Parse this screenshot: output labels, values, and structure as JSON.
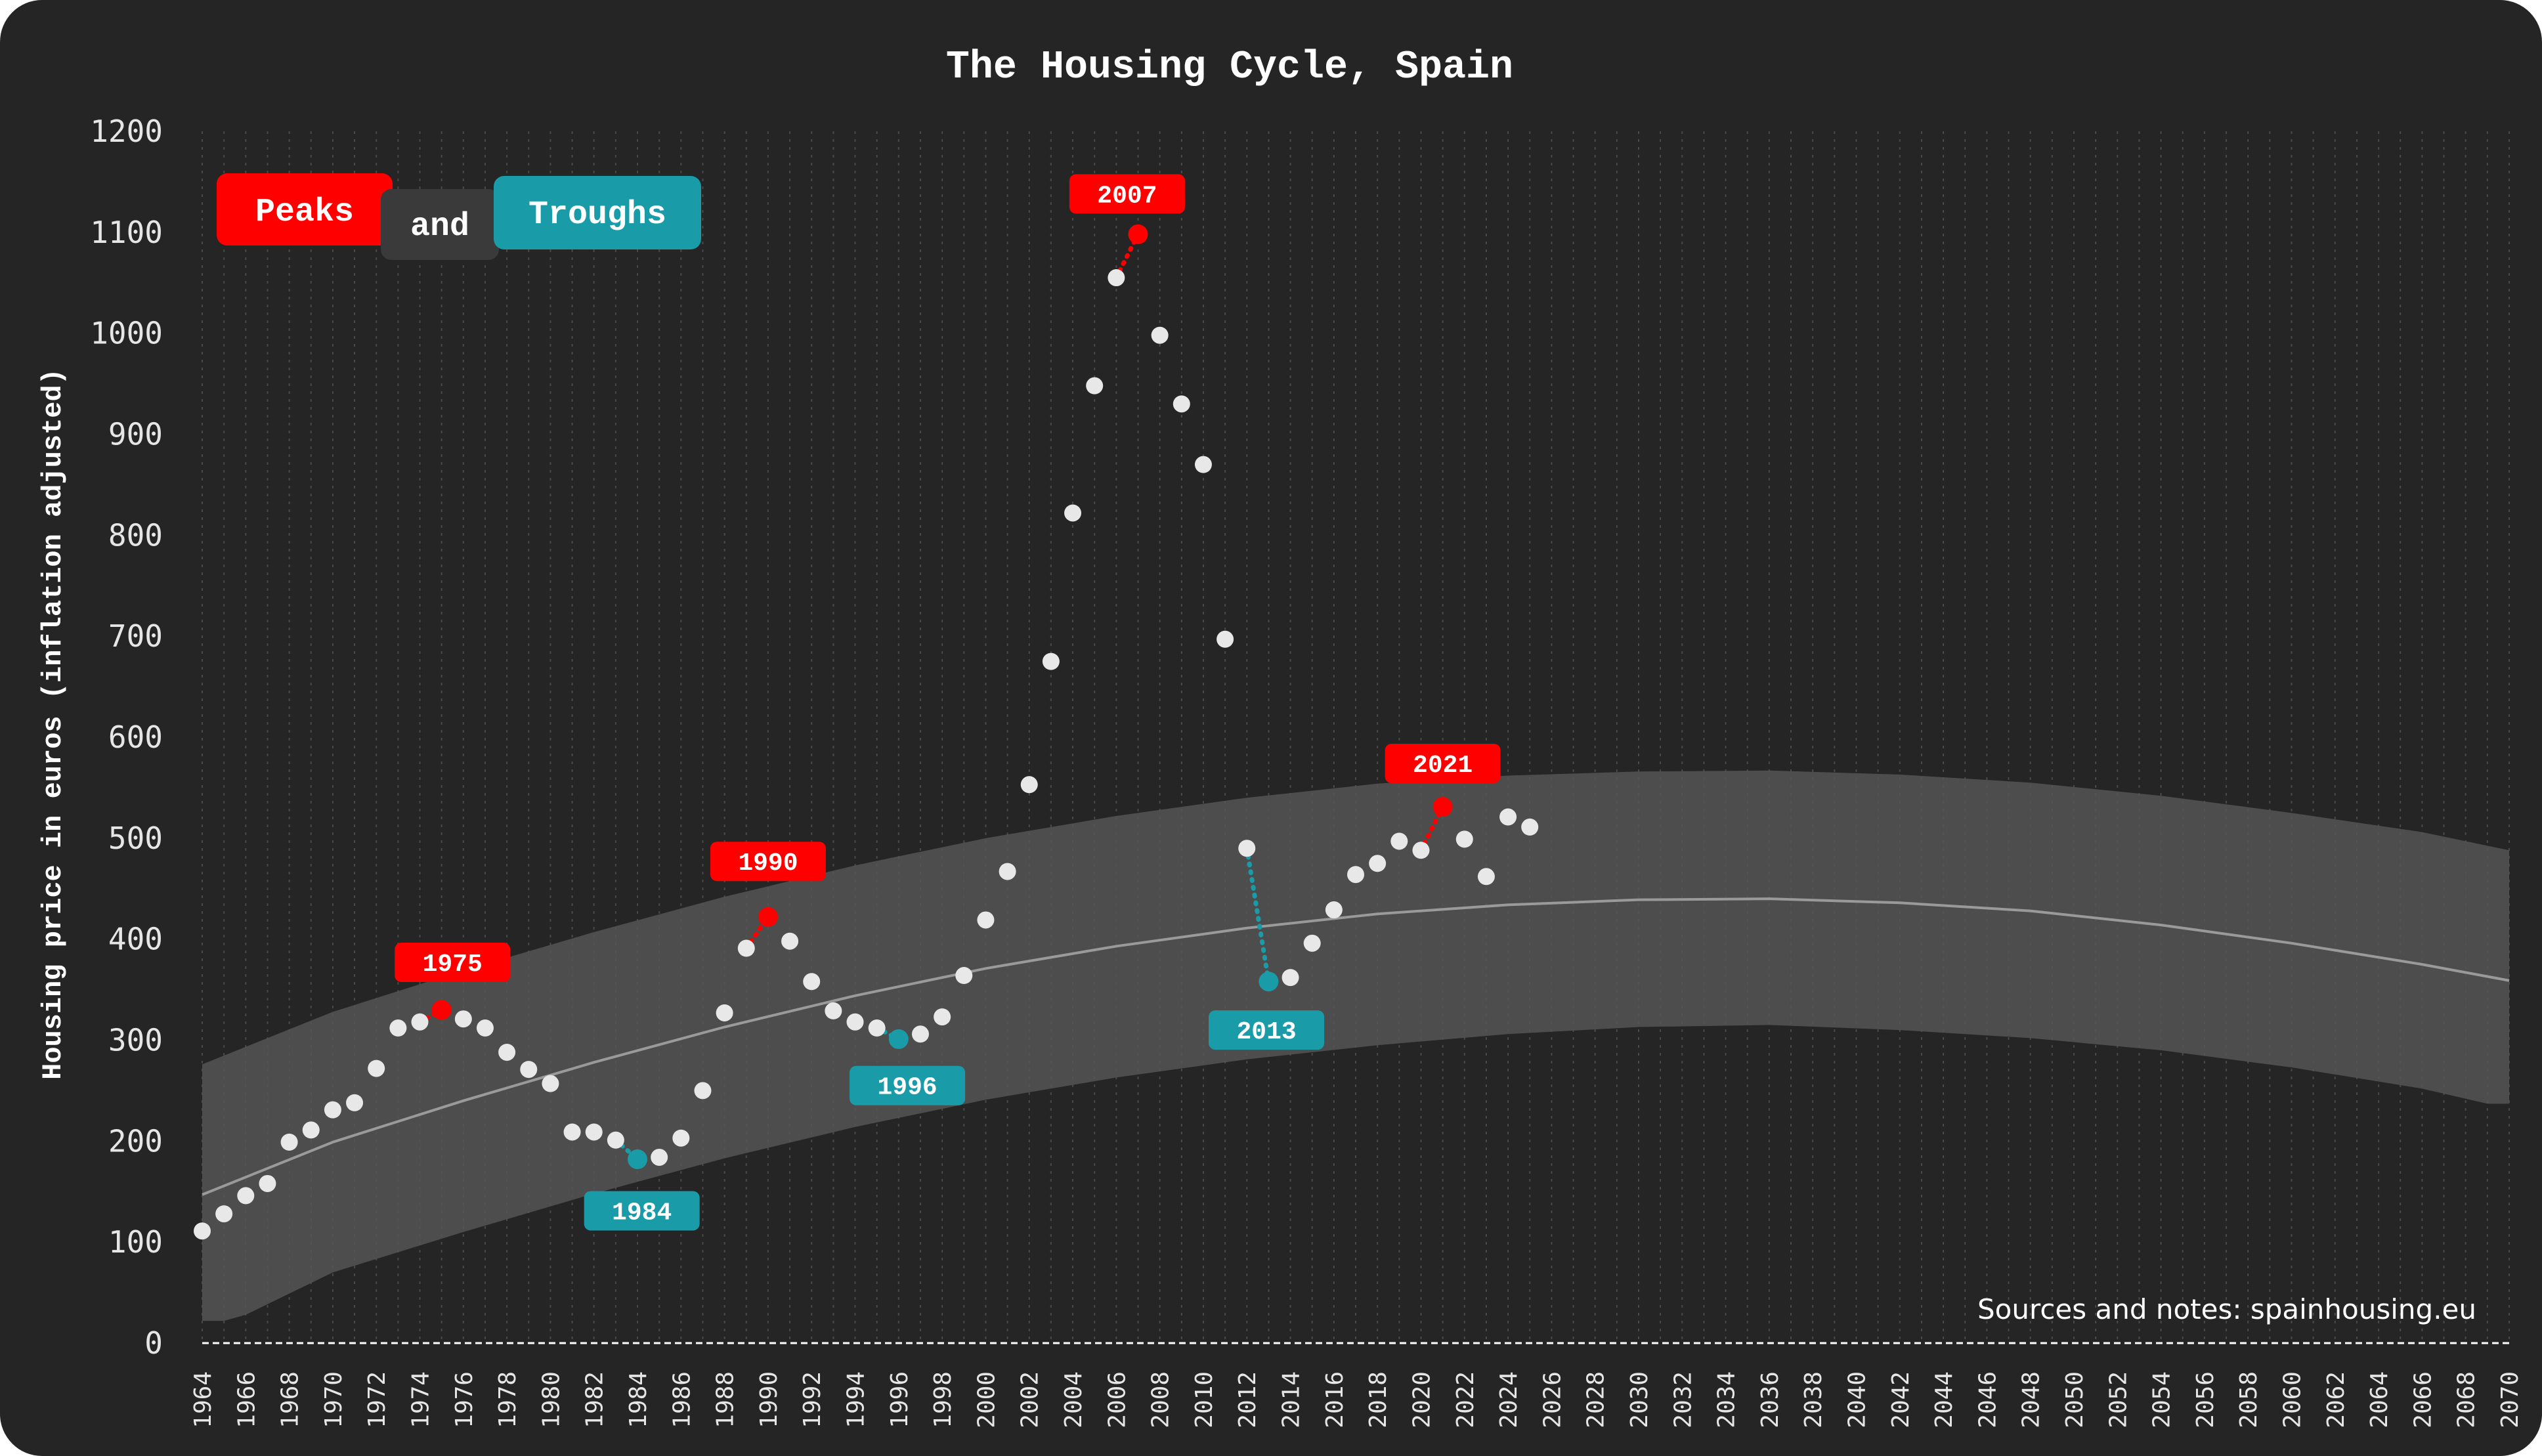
{
  "chart_data": {
    "type": "scatter",
    "title": "The Housing Cycle, Spain",
    "ylabel": "Housing price in euros (inflation adjusted)",
    "xlabel": "",
    "ylim": [
      0,
      1200
    ],
    "yticks": [
      "0",
      "100",
      "200",
      "300",
      "400",
      "500",
      "600",
      "700",
      "800",
      "900",
      "1000",
      "1100",
      "1200"
    ],
    "xlim": [
      1964,
      2070
    ],
    "xtick_step": 2,
    "grid": "vertical dotted",
    "legend": {
      "position": "top-left",
      "peaks_label": "Peaks",
      "and_label": "and",
      "troughs_label": "Troughs"
    },
    "source_note": "Sources and notes: spainhousing.eu",
    "colors": {
      "background": "#252525",
      "band": "#555555",
      "trend": "#9a9a9a",
      "points": "#e8e8e8",
      "peak": "#ff0000",
      "trough": "#1a9ba8",
      "and_badge": "#3a3a3a"
    },
    "points": [
      {
        "x": 1964,
        "y": 111
      },
      {
        "x": 1965,
        "y": 128
      },
      {
        "x": 1966,
        "y": 146
      },
      {
        "x": 1967,
        "y": 158
      },
      {
        "x": 1968,
        "y": 199
      },
      {
        "x": 1969,
        "y": 211
      },
      {
        "x": 1970,
        "y": 231
      },
      {
        "x": 1971,
        "y": 238
      },
      {
        "x": 1972,
        "y": 272
      },
      {
        "x": 1973,
        "y": 312
      },
      {
        "x": 1974,
        "y": 318
      },
      {
        "x": 1975,
        "y": 330
      },
      {
        "x": 1976,
        "y": 321
      },
      {
        "x": 1977,
        "y": 312
      },
      {
        "x": 1978,
        "y": 288
      },
      {
        "x": 1979,
        "y": 271
      },
      {
        "x": 1980,
        "y": 257
      },
      {
        "x": 1981,
        "y": 209
      },
      {
        "x": 1982,
        "y": 209
      },
      {
        "x": 1983,
        "y": 201
      },
      {
        "x": 1984,
        "y": 182
      },
      {
        "x": 1985,
        "y": 184
      },
      {
        "x": 1986,
        "y": 203
      },
      {
        "x": 1987,
        "y": 250
      },
      {
        "x": 1988,
        "y": 327
      },
      {
        "x": 1989,
        "y": 391
      },
      {
        "x": 1990,
        "y": 422
      },
      {
        "x": 1991,
        "y": 398
      },
      {
        "x": 1992,
        "y": 358
      },
      {
        "x": 1993,
        "y": 329
      },
      {
        "x": 1994,
        "y": 318
      },
      {
        "x": 1995,
        "y": 312
      },
      {
        "x": 1996,
        "y": 301
      },
      {
        "x": 1997,
        "y": 306
      },
      {
        "x": 1998,
        "y": 323
      },
      {
        "x": 1999,
        "y": 364
      },
      {
        "x": 2000,
        "y": 419
      },
      {
        "x": 2001,
        "y": 467
      },
      {
        "x": 2002,
        "y": 553
      },
      {
        "x": 2003,
        "y": 675
      },
      {
        "x": 2004,
        "y": 822
      },
      {
        "x": 2005,
        "y": 948
      },
      {
        "x": 2006,
        "y": 1055
      },
      {
        "x": 2007,
        "y": 1098
      },
      {
        "x": 2008,
        "y": 998
      },
      {
        "x": 2009,
        "y": 930
      },
      {
        "x": 2010,
        "y": 870
      },
      {
        "x": 2011,
        "y": 697
      },
      {
        "x": 2012,
        "y": 490
      },
      {
        "x": 2013,
        "y": 358
      },
      {
        "x": 2014,
        "y": 362
      },
      {
        "x": 2015,
        "y": 396
      },
      {
        "x": 2016,
        "y": 429
      },
      {
        "x": 2017,
        "y": 464
      },
      {
        "x": 2018,
        "y": 475
      },
      {
        "x": 2019,
        "y": 497
      },
      {
        "x": 2020,
        "y": 488
      },
      {
        "x": 2021,
        "y": 531
      },
      {
        "x": 2022,
        "y": 499
      },
      {
        "x": 2023,
        "y": 462
      },
      {
        "x": 2024,
        "y": 521
      },
      {
        "x": 2025,
        "y": 511
      }
    ],
    "trend": [
      {
        "x": 1964,
        "y": 147
      },
      {
        "x": 1970,
        "y": 199
      },
      {
        "x": 1976,
        "y": 240
      },
      {
        "x": 1982,
        "y": 278
      },
      {
        "x": 1988,
        "y": 313
      },
      {
        "x": 1994,
        "y": 344
      },
      {
        "x": 2000,
        "y": 371
      },
      {
        "x": 2006,
        "y": 393
      },
      {
        "x": 2012,
        "y": 411
      },
      {
        "x": 2018,
        "y": 425
      },
      {
        "x": 2024,
        "y": 434
      },
      {
        "x": 2030,
        "y": 439
      },
      {
        "x": 2036,
        "y": 440
      },
      {
        "x": 2042,
        "y": 436
      },
      {
        "x": 2048,
        "y": 428
      },
      {
        "x": 2054,
        "y": 414
      },
      {
        "x": 2060,
        "y": 396
      },
      {
        "x": 2066,
        "y": 375
      },
      {
        "x": 2070,
        "y": 359
      }
    ],
    "band_upper": [
      {
        "x": 1964,
        "y": 276
      },
      {
        "x": 1970,
        "y": 328
      },
      {
        "x": 1976,
        "y": 369
      },
      {
        "x": 1982,
        "y": 407
      },
      {
        "x": 1988,
        "y": 442
      },
      {
        "x": 1994,
        "y": 473
      },
      {
        "x": 2000,
        "y": 500
      },
      {
        "x": 2006,
        "y": 522
      },
      {
        "x": 2012,
        "y": 540
      },
      {
        "x": 2018,
        "y": 554
      },
      {
        "x": 2024,
        "y": 562
      },
      {
        "x": 2030,
        "y": 566
      },
      {
        "x": 2036,
        "y": 567
      },
      {
        "x": 2042,
        "y": 563
      },
      {
        "x": 2048,
        "y": 555
      },
      {
        "x": 2054,
        "y": 542
      },
      {
        "x": 2060,
        "y": 525
      },
      {
        "x": 2066,
        "y": 506
      },
      {
        "x": 2070,
        "y": 488
      }
    ],
    "band_lower": [
      {
        "x": 1964,
        "y": 22
      },
      {
        "x": 1965,
        "y": 22
      },
      {
        "x": 1966,
        "y": 28
      },
      {
        "x": 1970,
        "y": 70
      },
      {
        "x": 1976,
        "y": 110
      },
      {
        "x": 1982,
        "y": 148
      },
      {
        "x": 1988,
        "y": 183
      },
      {
        "x": 1994,
        "y": 214
      },
      {
        "x": 2000,
        "y": 241
      },
      {
        "x": 2006,
        "y": 263
      },
      {
        "x": 2012,
        "y": 281
      },
      {
        "x": 2018,
        "y": 295
      },
      {
        "x": 2024,
        "y": 306
      },
      {
        "x": 2030,
        "y": 313
      },
      {
        "x": 2036,
        "y": 315
      },
      {
        "x": 2042,
        "y": 310
      },
      {
        "x": 2048,
        "y": 302
      },
      {
        "x": 2054,
        "y": 290
      },
      {
        "x": 2060,
        "y": 273
      },
      {
        "x": 2066,
        "y": 252
      },
      {
        "x": 2069,
        "y": 237
      },
      {
        "x": 2070,
        "y": 237
      }
    ],
    "peaks": [
      {
        "x": 1975,
        "y": 330,
        "label": "1975",
        "from_x": 1974,
        "from_y": 318,
        "badge_x": 1975.5,
        "badge_y": 377
      },
      {
        "x": 1990,
        "y": 422,
        "label": "1990",
        "from_x": 1989,
        "from_y": 391,
        "badge_x": 1990,
        "badge_y": 477
      },
      {
        "x": 2007,
        "y": 1098,
        "label": "2007",
        "from_x": 2006,
        "from_y": 1055,
        "badge_x": 2006.5,
        "badge_y": 1138
      },
      {
        "x": 2021,
        "y": 531,
        "label": "2021",
        "from_x": 2020,
        "from_y": 488,
        "badge_x": 2021,
        "badge_y": 574
      }
    ],
    "troughs": [
      {
        "x": 1984,
        "y": 182,
        "label": "1984",
        "from_x": 1983,
        "from_y": 201,
        "badge_x": 1984.2,
        "badge_y": 131
      },
      {
        "x": 1996,
        "y": 301,
        "label": "1996",
        "from_x": 1995,
        "from_y": 312,
        "badge_x": 1996.4,
        "badge_y": 255
      },
      {
        "x": 2013,
        "y": 358,
        "label": "2013",
        "from_x": 2012,
        "from_y": 490,
        "badge_x": 2012.9,
        "badge_y": 310
      }
    ]
  }
}
